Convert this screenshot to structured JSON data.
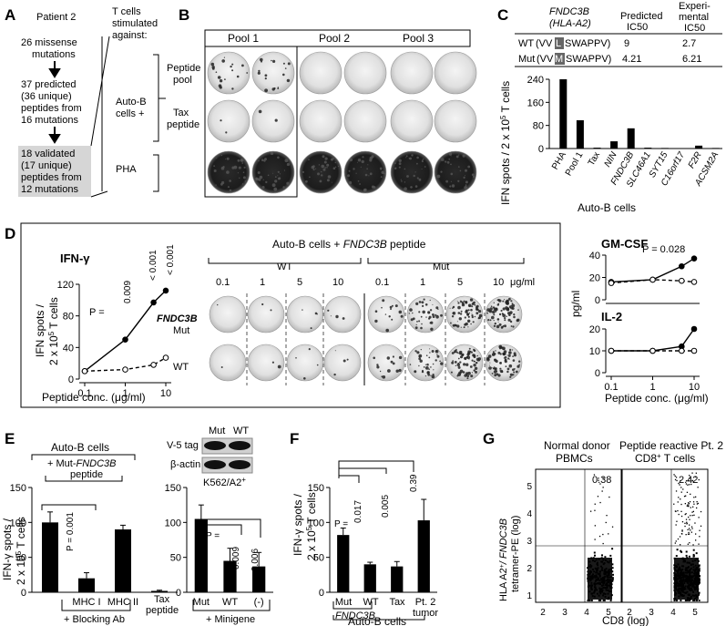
{
  "panelA": {
    "letter": "A",
    "patient": "Patient 2",
    "step1": "26 missense",
    "step1b": "mutations",
    "step2": "37 predicted",
    "step2b": "(36 unique)",
    "step2c": "peptides from",
    "step2d": "16 mutations",
    "step3": "18 validated",
    "step3b": "(17 unique)",
    "step3c": "peptides from",
    "step3d": "12 mutations",
    "tcells1": "T cells",
    "tcells2": "stimulated",
    "tcells3": "against:",
    "autob": "Auto-B",
    "autob2": "cells +",
    "pha": "PHA"
  },
  "panelB": {
    "letter": "B",
    "pools": [
      "Pool 1",
      "Pool 2",
      "Pool 3"
    ],
    "rows": [
      "Peptide",
      "pool",
      "Tax",
      "peptide"
    ]
  },
  "panelC": {
    "letter": "C",
    "gene": "FNDC3B",
    "hla": "(HLA-A2)",
    "col_pred": "Predicted",
    "col_pred2": "IC50",
    "col_exp": "Experi-",
    "col_exp2": "mental",
    "col_exp3": "IC50",
    "wt_label": "WT",
    "wt_seq_a": "(VV",
    "wt_res": "L",
    "wt_seq_b": "SWAPPV)",
    "wt_pred": "9",
    "wt_exp": "2.7",
    "mut_label": "Mut",
    "mut_seq_a": "(VV",
    "mut_res": "M",
    "mut_seq_b": "SWAPPV)",
    "mut_pred": "4.21",
    "mut_exp": "6.21",
    "ylabel": "IFN spots / 2 x 10",
    "ylabel_tail": " T cells",
    "xlabel": "Auto-B cells",
    "chart_data": {
      "type": "bar",
      "categories": [
        "PHA",
        "Pool 1",
        "Tax",
        "NIN",
        "FNDC3B",
        "SLC46A1",
        "SYT15",
        "C16orf17",
        "F2R",
        "ACSM2A"
      ],
      "values": [
        240,
        98,
        3,
        25,
        70,
        3,
        2,
        1,
        10,
        2
      ],
      "ylim": [
        0,
        240
      ],
      "yticks": [
        "0",
        "80",
        "160",
        "240"
      ],
      "ylabel": "IFN spots / 2 x 10^5 T cells",
      "xlabel": "Auto-B cells"
    }
  },
  "panelD": {
    "letter": "D",
    "ifn_title": "IFN-γ",
    "ylabel1": "IFN spots /",
    "ylabel2": "2 x 10",
    "ylabel2b": " T cells",
    "xlabel": "Peptide conc. (μg/ml)",
    "p1": "P =",
    "p1v": "0.009",
    "p2": "< 0.001",
    "p3": "< 0.001",
    "mut_gene": "FNDC3B",
    "mut_lab": "Mut",
    "wt_lab": "WT",
    "assay_title": "Auto-B cells + ",
    "assay_gene": "FNDC3B",
    "assay_tail": " peptide",
    "wt_group": "WT",
    "mut_group": "Mut",
    "concs": [
      "0.1",
      "1",
      "5",
      "10"
    ],
    "unit": "μg/ml",
    "gm_title": "GM-CSF",
    "gm_p": "P = 0.028",
    "il2_title": "IL-2",
    "right_ylabel": "pg/ml",
    "right_xlabel": "Peptide conc. (μg/ml)",
    "chart_data": [
      {
        "type": "line",
        "name": "IFN-γ",
        "x": [
          0.1,
          1,
          5,
          10
        ],
        "series": [
          {
            "name": "FNDC3B Mut",
            "values": [
              10,
              50,
              97,
              112
            ]
          },
          {
            "name": "WT",
            "values": [
              10,
              12,
              18,
              27
            ]
          }
        ],
        "ylim": [
          0,
          120
        ],
        "yticks": [
          "0",
          "40",
          "80",
          "120"
        ],
        "xticks": [
          "0.1",
          "1",
          "10"
        ],
        "xscale": "log"
      },
      {
        "type": "line",
        "name": "GM-CSF",
        "x": [
          0.1,
          1,
          5,
          10
        ],
        "series": [
          {
            "name": "Mut",
            "values": [
              16,
              18,
              30,
              37
            ]
          },
          {
            "name": "WT",
            "values": [
              15,
              18,
              17,
              16
            ]
          }
        ],
        "ylim": [
          0,
          40
        ],
        "yticks": [
          "0",
          "20",
          "40"
        ],
        "xscale": "log"
      },
      {
        "type": "line",
        "name": "IL-2",
        "x": [
          0.1,
          1,
          5,
          10
        ],
        "series": [
          {
            "name": "Mut",
            "values": [
              10,
              10,
              12,
              20
            ]
          },
          {
            "name": "WT",
            "values": [
              10,
              10,
              10,
              10
            ]
          }
        ],
        "ylim": [
          0,
          20
        ],
        "yticks": [
          "0",
          "10",
          "20"
        ],
        "xticks": [
          "0.1",
          "1",
          "10"
        ],
        "xscale": "log"
      }
    ]
  },
  "panelE": {
    "letter": "E",
    "autob": "Auto-B cells",
    "plus": "+ Mut-",
    "plus_gene": "FNDC3B",
    "plus2": "peptide",
    "ylabel1": "IFN-γ spots /",
    "ylabel2": "2 x 10",
    "ylabel2b": " T cells",
    "p1": "P = 0.001",
    "blocking": "+ Blocking Ab",
    "tax": "Tax",
    "tax2": "peptide",
    "v5": "V-5 tag",
    "actin": "β-actin",
    "blot_mut": "Mut",
    "blot_wt": "WT",
    "k562": "K562/A2",
    "k562sup": "+",
    "p2": "P =",
    "p2v": "0.009",
    "p3": "0.006",
    "minigene": "+ Minigene",
    "chart_data": [
      {
        "type": "bar",
        "categories": [
          "",
          "MHC I",
          "MHC II",
          "Tax peptide"
        ],
        "values": [
          100,
          20,
          90,
          2
        ],
        "errors": [
          15,
          8,
          6,
          1
        ],
        "ylim": [
          0,
          150
        ],
        "yticks": [
          "0",
          "50",
          "100",
          "150"
        ]
      },
      {
        "type": "bar",
        "categories": [
          "Mut",
          "WT",
          "(-)"
        ],
        "values": [
          105,
          45,
          37
        ],
        "errors": [
          20,
          18,
          20
        ],
        "ylim": [
          0,
          150
        ],
        "yticks": [
          "0",
          "50",
          "100",
          "150"
        ]
      }
    ]
  },
  "panelF": {
    "letter": "F",
    "ylabel1": "IFN-γ spots /",
    "ylabel2": "2 x 10",
    "ylabel2b": " T cells",
    "p": "P =",
    "p1": "0.017",
    "p2": "0.005",
    "p3": "0.39",
    "gene": "FNDC3B",
    "autob": "Auto-B cells",
    "chart_data": {
      "type": "bar",
      "categories": [
        "Mut",
        "WT",
        "Tax",
        "Pt. 2 tumor"
      ],
      "values": [
        82,
        40,
        37,
        103
      ],
      "errors": [
        10,
        3,
        7,
        30
      ],
      "ylim": [
        0,
        150
      ],
      "yticks": [
        "0",
        "50",
        "100",
        "150"
      ]
    }
  },
  "panelG": {
    "letter": "G",
    "t1a": "Normal donor",
    "t1b": "PBMCs",
    "t2a": "Peptide reactive Pt. 2",
    "t2b": "CD8",
    "t2c": " T cells",
    "q1": "0.38",
    "q2": "2.42",
    "ylabel1": "HLA A2",
    "ylabel1b": "/ FNDC3B",
    "ylabel2": "tetramer-PE (log)",
    "xlabel": "CD8 (log)",
    "xticks": [
      "2",
      "3",
      "4",
      "5"
    ],
    "yticks": [
      "1",
      "2",
      "3",
      "4",
      "5"
    ]
  }
}
